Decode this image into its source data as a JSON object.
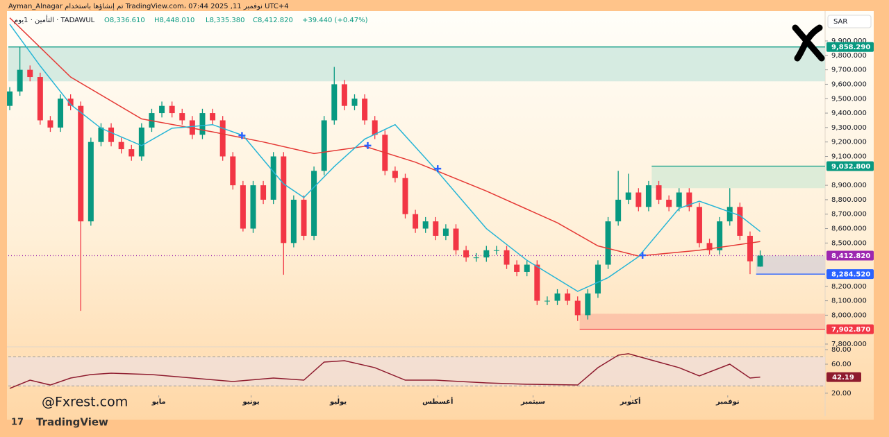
{
  "header": {
    "credit": "Ayman_Alnagar تم إنشاؤها باستخدام TradingView.com، 07:44 2025 ,11 نوفمبر UTC+4",
    "symbol": "التأمين · 1يوم · TADAWUL",
    "open": "O8,336.610",
    "high": "H8,448.010",
    "low": "L8,335.380",
    "close": "C8,412.820",
    "change": "+39.440 (+0.47%)",
    "currency": "SAR",
    "watermark": "@Fxrest.com",
    "brand": "TradingView"
  },
  "chart_data": {
    "type": "candlestick",
    "up_color": "#089981",
    "down_color": "#f23645",
    "xlim": [
      -0.14,
      80.4
    ],
    "xticks": [
      {
        "value": 14.7,
        "label": "مايو"
      },
      {
        "value": 23.8,
        "label": "يونيو"
      },
      {
        "value": 32.4,
        "label": "يوليو"
      },
      {
        "value": 42.2,
        "label": "أغسطس"
      },
      {
        "value": 51.6,
        "label": "سبتمبر"
      },
      {
        "value": 61.2,
        "label": "أكتوبر"
      },
      {
        "value": 70.8,
        "label": "نوفمبر"
      }
    ],
    "ylim": [
      7780.8,
      10087.5
    ],
    "yticks": [
      {
        "value": 9900,
        "label": "9,900.000"
      },
      {
        "value": 9800,
        "label": "9,800.000"
      },
      {
        "value": 9700,
        "label": "9,700.000"
      },
      {
        "value": 9600,
        "label": "9,600.000"
      },
      {
        "value": 9500,
        "label": "9,500.000"
      },
      {
        "value": 9400,
        "label": "9,400.000"
      },
      {
        "value": 9300,
        "label": "9,300.000"
      },
      {
        "value": 9200,
        "label": "9,200.000"
      },
      {
        "value": 9100,
        "label": "9,100.000"
      },
      {
        "value": 8900,
        "label": "8,900.000"
      },
      {
        "value": 8800,
        "label": "8,800.000"
      },
      {
        "value": 8700,
        "label": "8,700.000"
      },
      {
        "value": 8600,
        "label": "8,600.000"
      },
      {
        "value": 8500,
        "label": "8,500.000"
      },
      {
        "value": 8200,
        "label": "8,200.000"
      },
      {
        "value": 8100,
        "label": "8,100.000"
      },
      {
        "value": 8000,
        "label": "8,000.000"
      },
      {
        "value": 7800,
        "label": "7,800.000"
      }
    ],
    "open": [
      9450,
      9550,
      9700,
      9650,
      9350,
      9300,
      9500,
      9450,
      8650,
      9200,
      9300,
      9200,
      9150,
      9100,
      9300,
      9400,
      9450,
      9400,
      9350,
      9250,
      9400,
      9350,
      9100,
      8900,
      8600,
      8900,
      8800,
      9100,
      8500,
      8800,
      8550,
      9000,
      9350,
      9600,
      9450,
      9500,
      9350,
      9250,
      9000,
      8950,
      8700,
      8600,
      8650,
      8550,
      8600,
      8450,
      8400,
      8400,
      8450,
      8450,
      8350,
      8300,
      8350,
      8100,
      8100,
      8150,
      8100,
      8000,
      8150,
      8350,
      8650,
      8800,
      8850,
      8750,
      8900,
      8800,
      8750,
      8850,
      8750,
      8500,
      8450,
      8650,
      8750,
      8550,
      8336.61
    ],
    "high": [
      9580,
      9860,
      9730,
      9680,
      9380,
      9530,
      9530,
      9480,
      9230,
      9330,
      9330,
      9230,
      9180,
      9330,
      9430,
      9480,
      9480,
      9430,
      9380,
      9430,
      9430,
      9380,
      9130,
      8930,
      8930,
      8930,
      9130,
      9130,
      8830,
      8830,
      9030,
      9380,
      9720,
      9630,
      9530,
      9530,
      9380,
      9280,
      9030,
      8980,
      8730,
      8680,
      8680,
      8630,
      8630,
      8480,
      8430,
      8480,
      8480,
      8480,
      8380,
      8380,
      8380,
      8130,
      8180,
      8180,
      8130,
      8180,
      8380,
      8680,
      9000,
      8980,
      8880,
      8930,
      8930,
      8830,
      8880,
      8880,
      8780,
      8530,
      8680,
      8880,
      8780,
      8580,
      8448.01
    ],
    "low": [
      9420,
      9520,
      9620,
      9320,
      9270,
      9270,
      9420,
      8030,
      8620,
      9170,
      9170,
      9120,
      9070,
      9070,
      9270,
      9370,
      9370,
      9320,
      9220,
      9220,
      9320,
      9070,
      8870,
      8580,
      8570,
      8770,
      8770,
      8280,
      8470,
      8520,
      8520,
      8970,
      9320,
      9420,
      9420,
      9320,
      9220,
      8970,
      8920,
      8670,
      8570,
      8570,
      8520,
      8520,
      8420,
      8370,
      8370,
      8370,
      8420,
      8320,
      8270,
      8270,
      8070,
      8070,
      8070,
      8070,
      7960,
      7970,
      8120,
      8320,
      8620,
      8770,
      8720,
      8720,
      8770,
      8720,
      8720,
      8720,
      8470,
      8420,
      8420,
      8620,
      8520,
      8284.52,
      8335.38
    ],
    "close": [
      9550,
      9700,
      9650,
      9350,
      9300,
      9500,
      9450,
      8650,
      9200,
      9300,
      9200,
      9150,
      9100,
      9300,
      9400,
      9450,
      9400,
      9350,
      9250,
      9400,
      9350,
      9100,
      8900,
      8600,
      8900,
      8800,
      9100,
      8500,
      8800,
      8550,
      9000,
      9350,
      9600,
      9450,
      9500,
      9350,
      9250,
      9000,
      8950,
      8700,
      8600,
      8650,
      8550,
      8600,
      8450,
      8400,
      8400,
      8450,
      8450,
      8350,
      8300,
      8350,
      8100,
      8100,
      8150,
      8100,
      8000,
      8150,
      8350,
      8650,
      8800,
      8850,
      8750,
      8900,
      8800,
      8750,
      8850,
      8750,
      8500,
      8450,
      8650,
      8750,
      8550,
      8373.38,
      8412.82
    ],
    "lines": [
      {
        "color": "#e53935",
        "x": [
          0,
          6,
          13,
          20,
          25,
          30,
          35,
          40,
          47,
          54,
          58,
          62,
          68,
          74
        ],
        "values": [
          10060,
          9650,
          9360,
          9270,
          9200,
          9120,
          9170,
          9060,
          8860,
          8640,
          8480,
          8410,
          8450,
          8510
        ]
      },
      {
        "color": "#26b5d6",
        "x": [
          0,
          3,
          6,
          9,
          13,
          16,
          20,
          23,
          27,
          29,
          32,
          35,
          38,
          42,
          47,
          51,
          56,
          59,
          62,
          66,
          68,
          72,
          74
        ],
        "values": [
          10015,
          9727,
          9460,
          9295,
          9175,
          9295,
          9320,
          9245,
          8910,
          8815,
          9030,
          9220,
          9320,
          9010,
          8600,
          8380,
          8165,
          8260,
          8405,
          8740,
          8790,
          8690,
          8580
        ]
      }
    ],
    "markers": {
      "color": "#2962ff",
      "x": [
        22.9,
        35.3,
        42.2,
        62.4
      ],
      "values": [
        9245,
        9175,
        9015,
        8415
      ]
    },
    "zones": [
      {
        "color": "#cfe8de",
        "from": -0.14,
        "top": 9858.29,
        "bottom": 9620
      },
      {
        "color": "#d7ead6",
        "from": 63.3,
        "top": 9032.8,
        "bottom": 8880
      },
      {
        "color": "#fbbfa6",
        "from": 56.2,
        "top": 8010,
        "bottom": 7902.87
      },
      {
        "color": "#dcd3d6",
        "from": 73.6,
        "top": 8412.82,
        "bottom": 8284.52
      }
    ],
    "levels": [
      {
        "value": 9858.29,
        "label": "9,858.290",
        "color": "#089981",
        "from": -0.14
      },
      {
        "value": 9032.8,
        "label": "9,032.800",
        "color": "#089981",
        "from": 63.3
      },
      {
        "value": 8412.82,
        "label": "8,412.820",
        "color": "#9c27b0",
        "from": -0.14
      },
      {
        "value": 8284.52,
        "label": "8,284.520",
        "color": "#2962ff",
        "from": 73.6
      },
      {
        "value": 7902.87,
        "label": "7,902.870",
        "color": "#f23645",
        "from": 56.2
      }
    ],
    "rsi": {
      "color": "#8e1b2e",
      "ylim": [
        17,
        82
      ],
      "bands": [
        70,
        30
      ],
      "yticks": [
        {
          "value": 80,
          "label": "80.00"
        },
        {
          "value": 60,
          "label": "60.00"
        },
        {
          "value": 20,
          "label": "20.00"
        }
      ],
      "x": [
        0,
        2,
        4,
        6,
        8,
        10,
        14,
        18,
        22,
        26,
        29,
        31,
        33,
        36,
        39,
        42,
        47,
        51,
        56,
        58,
        60,
        61,
        63,
        66,
        68,
        71,
        73,
        74
      ],
      "values": [
        26.6,
        38,
        31.3,
        40.9,
        45.7,
        47.6,
        45.7,
        40.9,
        36.1,
        40.9,
        38,
        62.9,
        64.8,
        55.2,
        38,
        38,
        34.2,
        32.3,
        31.3,
        55.2,
        72.4,
        74.4,
        66.7,
        55.2,
        43.8,
        60,
        40.9,
        42.19
      ]
    }
  }
}
